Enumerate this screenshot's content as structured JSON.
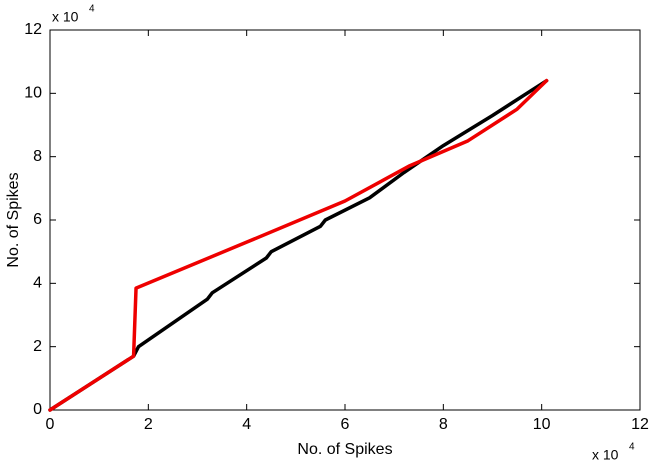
{
  "chart_data": {
    "type": "line",
    "xlabel": "No. of Spikes",
    "ylabel": "No. of Spikes",
    "x_multiplier": {
      "base": "x 10",
      "exponent": "4"
    },
    "y_multiplier": {
      "base": "x 10",
      "exponent": "4"
    },
    "xlim": [
      0,
      12
    ],
    "ylim": [
      0,
      12
    ],
    "xticks": [
      0,
      2,
      4,
      6,
      8,
      10,
      12
    ],
    "yticks": [
      0,
      2,
      4,
      6,
      8,
      10,
      12
    ],
    "grid": false,
    "series": [
      {
        "color": "#000000",
        "x": [
          0,
          1.7,
          1.8,
          3.2,
          3.3,
          4.4,
          4.5,
          5.5,
          5.6,
          6.5,
          7.2,
          8,
          9,
          10.1
        ],
        "values": [
          0,
          1.7,
          2.0,
          3.5,
          3.7,
          4.8,
          5.0,
          5.8,
          6.0,
          6.7,
          7.5,
          8.35,
          9.3,
          10.4
        ]
      },
      {
        "color": "#ee0000",
        "x": [
          0,
          1.7,
          1.75,
          4,
          6,
          7.3,
          8.5,
          9.5,
          10.1
        ],
        "values": [
          0,
          1.7,
          3.85,
          5.3,
          6.6,
          7.7,
          8.5,
          9.5,
          10.4
        ]
      }
    ]
  }
}
